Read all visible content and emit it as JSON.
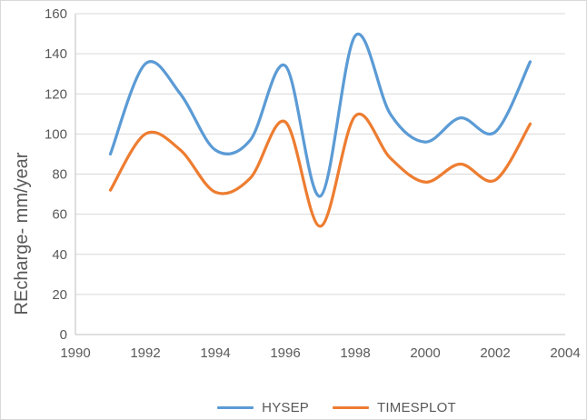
{
  "chart_data": {
    "type": "line",
    "title": "",
    "xlabel": "",
    "ylabel": "REcharge- mm/year",
    "xlim": [
      1990,
      2004
    ],
    "ylim": [
      0,
      160
    ],
    "xticks": [
      1990,
      1992,
      1994,
      1996,
      1998,
      2000,
      2002,
      2004
    ],
    "yticks": [
      0,
      20,
      40,
      60,
      80,
      100,
      120,
      140,
      160
    ],
    "grid": "horizontal-only",
    "smooth_lines": true,
    "legend_position": "bottom-center",
    "x": [
      1991,
      1992,
      1993,
      1994,
      1995,
      1996,
      1997,
      1998,
      1999,
      2000,
      2001,
      2002,
      2003
    ],
    "series": [
      {
        "name": "HYSEP",
        "color": "#5B9BD5",
        "values": [
          90,
          135,
          120,
          92,
          97,
          134,
          69,
          149,
          110,
          96,
          108,
          101,
          136
        ]
      },
      {
        "name": "TIMESPLOT",
        "color": "#ED7D31",
        "values": [
          72,
          100,
          92,
          71,
          78,
          106,
          54,
          109,
          88,
          76,
          85,
          77,
          105
        ]
      }
    ],
    "colors": {
      "grid_line": "#d9d9d9",
      "axis_line": "#bfbfbf",
      "tick_label": "#595959",
      "axis_title": "#595959",
      "background": "#ffffff"
    }
  }
}
